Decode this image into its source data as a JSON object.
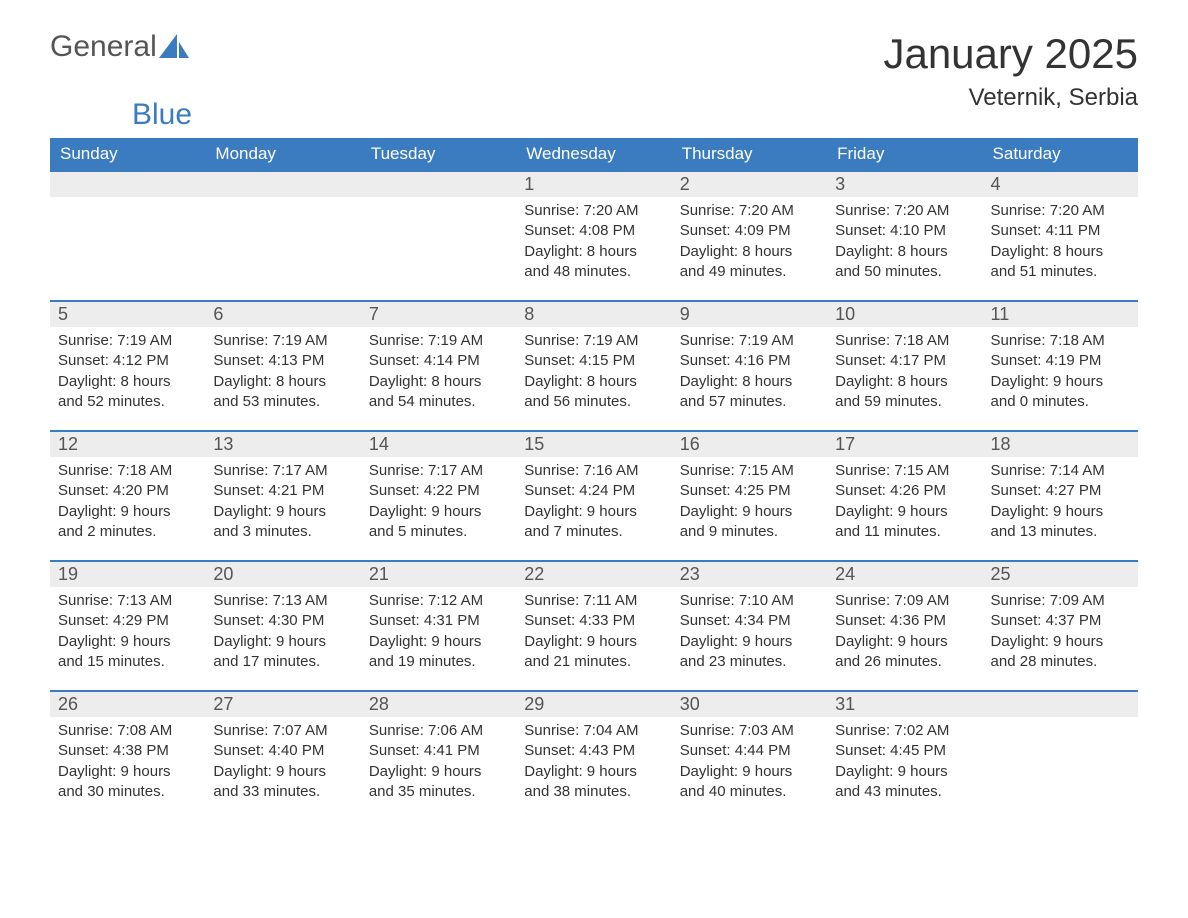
{
  "logo": {
    "general": "General",
    "blue": "Blue"
  },
  "title": {
    "month": "January 2025",
    "location": "Veternik, Serbia"
  },
  "colors": {
    "header_bg": "#3b7bbf",
    "header_text": "#ffffff",
    "row_border": "#3b7bbf",
    "daynum_bg": "#ededed",
    "daynum_text": "#555555",
    "body_text": "#333333",
    "page_bg": "#ffffff"
  },
  "dayHeaders": [
    "Sunday",
    "Monday",
    "Tuesday",
    "Wednesday",
    "Thursday",
    "Friday",
    "Saturday"
  ],
  "weeks": [
    [
      {
        "num": "",
        "sunrise": "",
        "sunset": "",
        "daylight": ""
      },
      {
        "num": "",
        "sunrise": "",
        "sunset": "",
        "daylight": ""
      },
      {
        "num": "",
        "sunrise": "",
        "sunset": "",
        "daylight": ""
      },
      {
        "num": "1",
        "sunrise": "Sunrise: 7:20 AM",
        "sunset": "Sunset: 4:08 PM",
        "daylight": "Daylight: 8 hours and 48 minutes."
      },
      {
        "num": "2",
        "sunrise": "Sunrise: 7:20 AM",
        "sunset": "Sunset: 4:09 PM",
        "daylight": "Daylight: 8 hours and 49 minutes."
      },
      {
        "num": "3",
        "sunrise": "Sunrise: 7:20 AM",
        "sunset": "Sunset: 4:10 PM",
        "daylight": "Daylight: 8 hours and 50 minutes."
      },
      {
        "num": "4",
        "sunrise": "Sunrise: 7:20 AM",
        "sunset": "Sunset: 4:11 PM",
        "daylight": "Daylight: 8 hours and 51 minutes."
      }
    ],
    [
      {
        "num": "5",
        "sunrise": "Sunrise: 7:19 AM",
        "sunset": "Sunset: 4:12 PM",
        "daylight": "Daylight: 8 hours and 52 minutes."
      },
      {
        "num": "6",
        "sunrise": "Sunrise: 7:19 AM",
        "sunset": "Sunset: 4:13 PM",
        "daylight": "Daylight: 8 hours and 53 minutes."
      },
      {
        "num": "7",
        "sunrise": "Sunrise: 7:19 AM",
        "sunset": "Sunset: 4:14 PM",
        "daylight": "Daylight: 8 hours and 54 minutes."
      },
      {
        "num": "8",
        "sunrise": "Sunrise: 7:19 AM",
        "sunset": "Sunset: 4:15 PM",
        "daylight": "Daylight: 8 hours and 56 minutes."
      },
      {
        "num": "9",
        "sunrise": "Sunrise: 7:19 AM",
        "sunset": "Sunset: 4:16 PM",
        "daylight": "Daylight: 8 hours and 57 minutes."
      },
      {
        "num": "10",
        "sunrise": "Sunrise: 7:18 AM",
        "sunset": "Sunset: 4:17 PM",
        "daylight": "Daylight: 8 hours and 59 minutes."
      },
      {
        "num": "11",
        "sunrise": "Sunrise: 7:18 AM",
        "sunset": "Sunset: 4:19 PM",
        "daylight": "Daylight: 9 hours and 0 minutes."
      }
    ],
    [
      {
        "num": "12",
        "sunrise": "Sunrise: 7:18 AM",
        "sunset": "Sunset: 4:20 PM",
        "daylight": "Daylight: 9 hours and 2 minutes."
      },
      {
        "num": "13",
        "sunrise": "Sunrise: 7:17 AM",
        "sunset": "Sunset: 4:21 PM",
        "daylight": "Daylight: 9 hours and 3 minutes."
      },
      {
        "num": "14",
        "sunrise": "Sunrise: 7:17 AM",
        "sunset": "Sunset: 4:22 PM",
        "daylight": "Daylight: 9 hours and 5 minutes."
      },
      {
        "num": "15",
        "sunrise": "Sunrise: 7:16 AM",
        "sunset": "Sunset: 4:24 PM",
        "daylight": "Daylight: 9 hours and 7 minutes."
      },
      {
        "num": "16",
        "sunrise": "Sunrise: 7:15 AM",
        "sunset": "Sunset: 4:25 PM",
        "daylight": "Daylight: 9 hours and 9 minutes."
      },
      {
        "num": "17",
        "sunrise": "Sunrise: 7:15 AM",
        "sunset": "Sunset: 4:26 PM",
        "daylight": "Daylight: 9 hours and 11 minutes."
      },
      {
        "num": "18",
        "sunrise": "Sunrise: 7:14 AM",
        "sunset": "Sunset: 4:27 PM",
        "daylight": "Daylight: 9 hours and 13 minutes."
      }
    ],
    [
      {
        "num": "19",
        "sunrise": "Sunrise: 7:13 AM",
        "sunset": "Sunset: 4:29 PM",
        "daylight": "Daylight: 9 hours and 15 minutes."
      },
      {
        "num": "20",
        "sunrise": "Sunrise: 7:13 AM",
        "sunset": "Sunset: 4:30 PM",
        "daylight": "Daylight: 9 hours and 17 minutes."
      },
      {
        "num": "21",
        "sunrise": "Sunrise: 7:12 AM",
        "sunset": "Sunset: 4:31 PM",
        "daylight": "Daylight: 9 hours and 19 minutes."
      },
      {
        "num": "22",
        "sunrise": "Sunrise: 7:11 AM",
        "sunset": "Sunset: 4:33 PM",
        "daylight": "Daylight: 9 hours and 21 minutes."
      },
      {
        "num": "23",
        "sunrise": "Sunrise: 7:10 AM",
        "sunset": "Sunset: 4:34 PM",
        "daylight": "Daylight: 9 hours and 23 minutes."
      },
      {
        "num": "24",
        "sunrise": "Sunrise: 7:09 AM",
        "sunset": "Sunset: 4:36 PM",
        "daylight": "Daylight: 9 hours and 26 minutes."
      },
      {
        "num": "25",
        "sunrise": "Sunrise: 7:09 AM",
        "sunset": "Sunset: 4:37 PM",
        "daylight": "Daylight: 9 hours and 28 minutes."
      }
    ],
    [
      {
        "num": "26",
        "sunrise": "Sunrise: 7:08 AM",
        "sunset": "Sunset: 4:38 PM",
        "daylight": "Daylight: 9 hours and 30 minutes."
      },
      {
        "num": "27",
        "sunrise": "Sunrise: 7:07 AM",
        "sunset": "Sunset: 4:40 PM",
        "daylight": "Daylight: 9 hours and 33 minutes."
      },
      {
        "num": "28",
        "sunrise": "Sunrise: 7:06 AM",
        "sunset": "Sunset: 4:41 PM",
        "daylight": "Daylight: 9 hours and 35 minutes."
      },
      {
        "num": "29",
        "sunrise": "Sunrise: 7:04 AM",
        "sunset": "Sunset: 4:43 PM",
        "daylight": "Daylight: 9 hours and 38 minutes."
      },
      {
        "num": "30",
        "sunrise": "Sunrise: 7:03 AM",
        "sunset": "Sunset: 4:44 PM",
        "daylight": "Daylight: 9 hours and 40 minutes."
      },
      {
        "num": "31",
        "sunrise": "Sunrise: 7:02 AM",
        "sunset": "Sunset: 4:45 PM",
        "daylight": "Daylight: 9 hours and 43 minutes."
      },
      {
        "num": "",
        "sunrise": "",
        "sunset": "",
        "daylight": ""
      }
    ]
  ]
}
